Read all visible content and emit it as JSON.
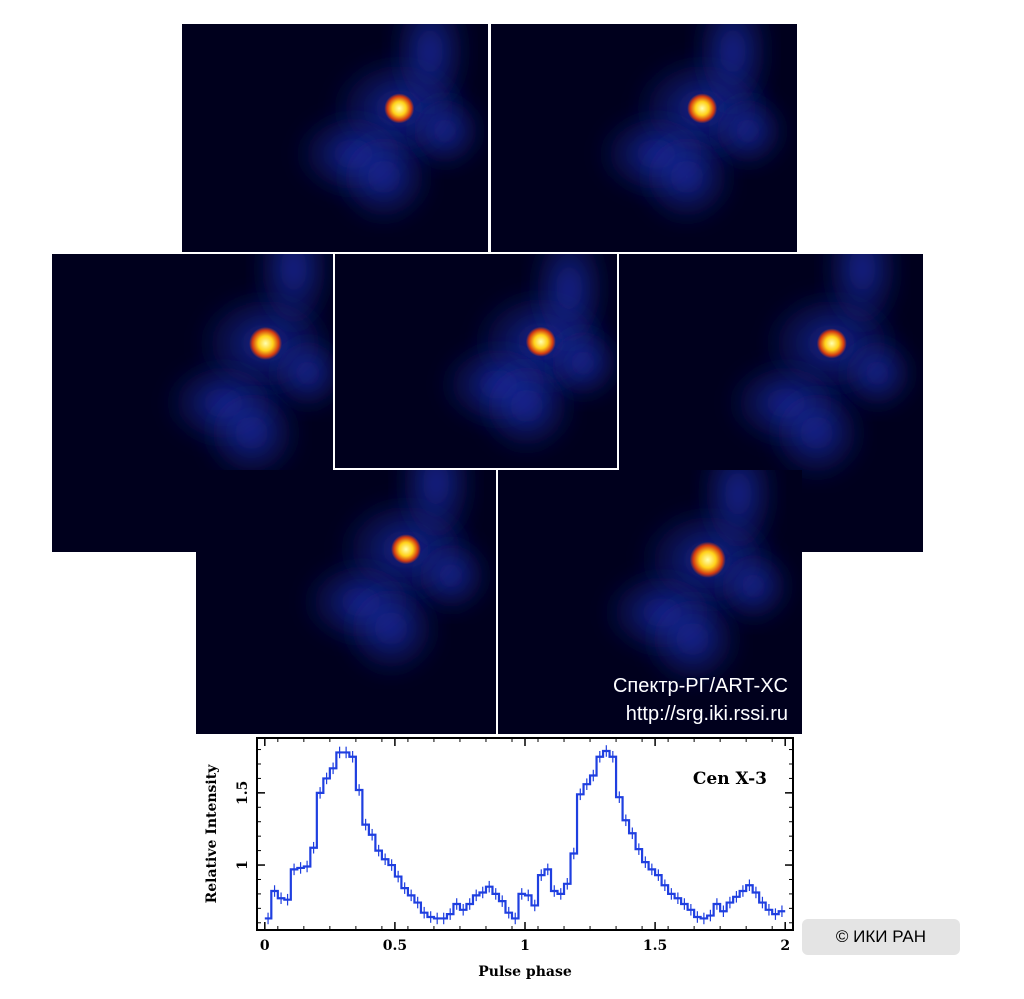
{
  "credits": {
    "line1": "Спектр-РГ/ART-XC",
    "line2": "http://srg.iki.rssi.ru"
  },
  "copyright": "© ИКИ РАН",
  "colors": {
    "background": "#00001d",
    "glow": "#1c2fb0",
    "core_hot": "#ffffb0",
    "core_mid": "#ffd21a",
    "core_edge": "#d23a12",
    "line": "#1f3fe0"
  },
  "chart_data": {
    "type": "line",
    "title": "Cen X-3",
    "xlabel": "Pulse phase",
    "ylabel": "Relative Intensity",
    "xlim": [
      -0.03,
      2.03
    ],
    "ylim": [
      0.55,
      1.88
    ],
    "xticks": [
      "0",
      "0.5",
      "1",
      "1.5",
      "2"
    ],
    "yticks": [
      "1",
      "1.5"
    ],
    "grid": false,
    "x": [
      0.0,
      0.025,
      0.05,
      0.075,
      0.1,
      0.125,
      0.15,
      0.175,
      0.2,
      0.225,
      0.25,
      0.275,
      0.3,
      0.325,
      0.35,
      0.375,
      0.4,
      0.425,
      0.45,
      0.475,
      0.5,
      0.525,
      0.55,
      0.575,
      0.6,
      0.625,
      0.65,
      0.675,
      0.7,
      0.725,
      0.75,
      0.775,
      0.8,
      0.825,
      0.85,
      0.875,
      0.9,
      0.925,
      0.95,
      0.975,
      1.0,
      1.025,
      1.05,
      1.075,
      1.1,
      1.125,
      1.15,
      1.175,
      1.2,
      1.225,
      1.25,
      1.275,
      1.3,
      1.325,
      1.35,
      1.375,
      1.4,
      1.425,
      1.45,
      1.475,
      1.5,
      1.525,
      1.55,
      1.575,
      1.6,
      1.625,
      1.65,
      1.675,
      1.7,
      1.725,
      1.75,
      1.775,
      1.8,
      1.825,
      1.85,
      1.875,
      1.9,
      1.925,
      1.95,
      1.975
    ],
    "values": [
      0.63,
      0.82,
      0.77,
      0.76,
      0.97,
      0.98,
      0.99,
      1.12,
      1.5,
      1.6,
      1.67,
      1.78,
      1.78,
      1.75,
      1.52,
      1.28,
      1.21,
      1.1,
      1.04,
      1.0,
      0.92,
      0.84,
      0.79,
      0.74,
      0.67,
      0.64,
      0.63,
      0.63,
      0.66,
      0.73,
      0.69,
      0.73,
      0.79,
      0.81,
      0.85,
      0.8,
      0.75,
      0.67,
      0.63,
      0.8,
      0.79,
      0.72,
      0.93,
      0.97,
      0.82,
      0.8,
      0.87,
      1.08,
      1.49,
      1.56,
      1.62,
      1.75,
      1.79,
      1.75,
      1.47,
      1.31,
      1.22,
      1.11,
      1.02,
      0.97,
      0.93,
      0.86,
      0.8,
      0.77,
      0.73,
      0.69,
      0.64,
      0.63,
      0.65,
      0.73,
      0.68,
      0.74,
      0.78,
      0.82,
      0.86,
      0.81,
      0.74,
      0.69,
      0.66,
      0.68
    ],
    "legend": "none"
  }
}
